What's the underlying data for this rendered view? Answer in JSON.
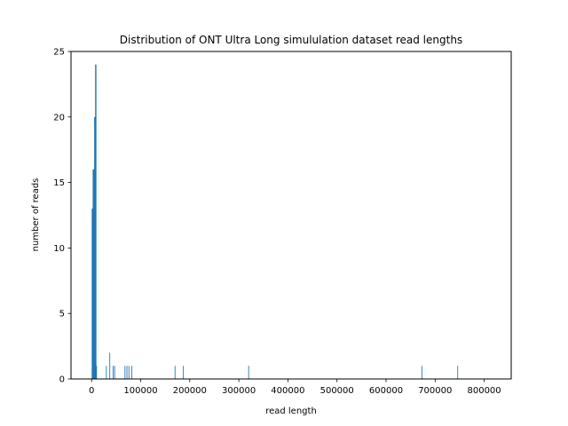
{
  "chart_data": {
    "type": "bar",
    "title": "Distribution of ONT Ultra Long simululation dataset read lengths",
    "xlabel": "read length",
    "ylabel": "number of reads",
    "xlim": [
      -42000,
      855000
    ],
    "ylim": [
      0,
      25
    ],
    "x_ticks": [
      0,
      100000,
      200000,
      300000,
      400000,
      500000,
      600000,
      700000,
      800000
    ],
    "y_ticks": [
      0,
      5,
      10,
      15,
      20,
      25
    ],
    "x_tick_labels": [
      "0",
      "100000",
      "200000",
      "300000",
      "400000",
      "500000",
      "600000",
      "700000",
      "800000"
    ],
    "y_tick_labels": [
      "0",
      "5",
      "10",
      "15",
      "20",
      "25"
    ],
    "bar_color": "#1f77b4",
    "bar_width": 1600,
    "grid": false,
    "series": [
      {
        "points": [
          [
            1000,
            13
          ],
          [
            2000,
            13
          ],
          [
            3000,
            16
          ],
          [
            4000,
            16
          ],
          [
            5000,
            16
          ],
          [
            6000,
            20
          ],
          [
            7000,
            20
          ],
          [
            8000,
            24
          ],
          [
            9000,
            24
          ],
          [
            10000,
            1
          ],
          [
            30000,
            1
          ],
          [
            37000,
            2
          ],
          [
            44000,
            1
          ],
          [
            47000,
            1
          ],
          [
            68000,
            1
          ],
          [
            72000,
            1
          ],
          [
            76000,
            1
          ],
          [
            82000,
            1
          ],
          [
            170000,
            1
          ],
          [
            187000,
            1
          ],
          [
            320000,
            1
          ],
          [
            673000,
            1
          ],
          [
            746000,
            1
          ]
        ]
      }
    ]
  }
}
